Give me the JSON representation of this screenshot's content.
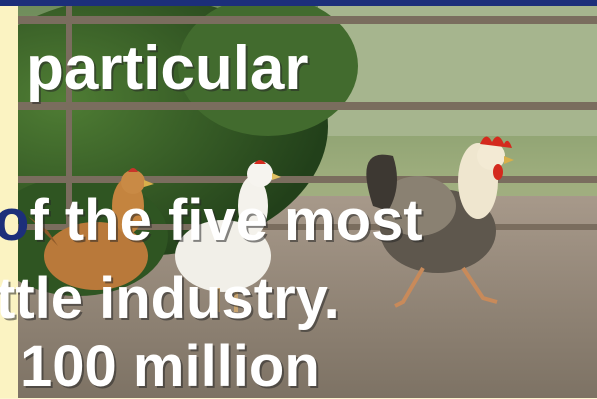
{
  "slide": {
    "lines": [
      {
        "prefix": "",
        "text": "particular"
      },
      {
        "prefix": "o",
        "text": "f the five most"
      },
      {
        "prefix": "",
        "text": "ttle industry."
      },
      {
        "prefix": "",
        "text": "100  million"
      }
    ]
  },
  "photo": {
    "subject": "chickens-and-rooster-by-fence",
    "colors": {
      "ground": "#8d8374",
      "fence": "#7a6d5e",
      "foliage": "#3c6a2a",
      "brown_hen": "#b9793a",
      "white_hen": "#f1efe8",
      "rooster_comb": "#d42a1e"
    }
  }
}
